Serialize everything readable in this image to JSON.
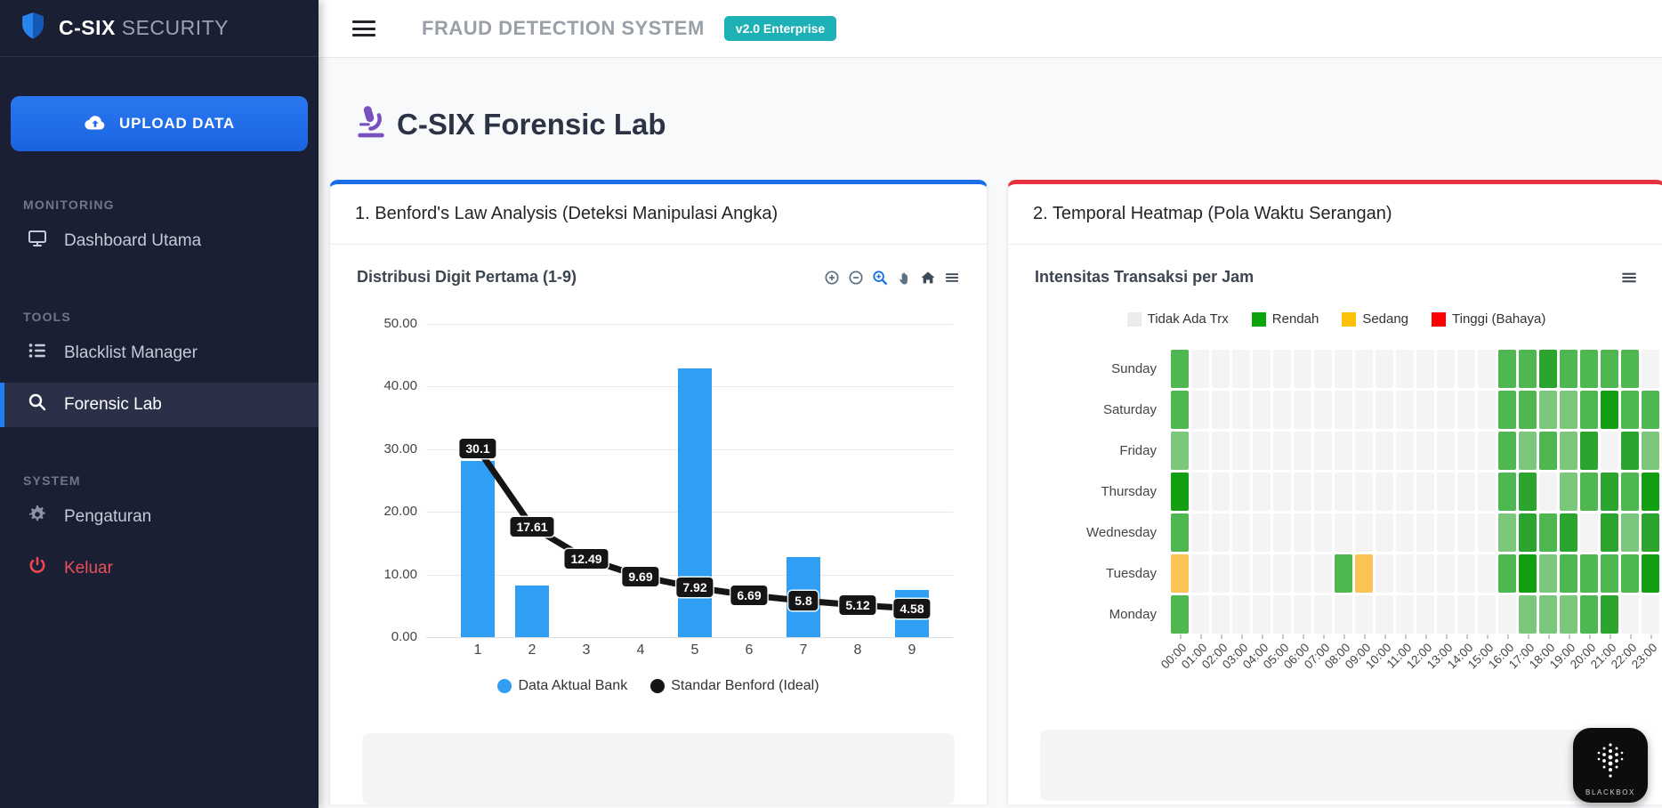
{
  "sidebar": {
    "logo": {
      "brand_bold": "C-SIX",
      "brand_light": "SECURITY"
    },
    "upload_button": "UPLOAD DATA",
    "sections": [
      {
        "label": "MONITORING",
        "items": [
          {
            "label": "Dashboard Utama",
            "icon": "monitor-icon",
            "active": false
          }
        ]
      },
      {
        "label": "TOOLS",
        "items": [
          {
            "label": "Blacklist Manager",
            "icon": "list-icon",
            "active": false
          },
          {
            "label": "Forensic Lab",
            "icon": "search-icon",
            "active": true
          }
        ]
      },
      {
        "label": "SYSTEM",
        "items": [
          {
            "label": "Pengaturan",
            "icon": "gear-icon",
            "active": false
          },
          {
            "label": "Keluar",
            "icon": "power-icon",
            "active": false,
            "danger": true
          }
        ]
      }
    ]
  },
  "header": {
    "title": "FRAUD DETECTION SYSTEM",
    "badge": "v2.0 Enterprise"
  },
  "page": {
    "title": "C-SIX Forensic Lab",
    "title_icon": "microscope-icon"
  },
  "benford_card": {
    "title": "1. Benford's Law Analysis (Deteksi Manipulasi Angka)",
    "accent_color": "#1a6fe8",
    "modebar_icons": [
      "zoom-in-icon",
      "zoom-out-icon",
      "box-zoom-icon",
      "pan-icon",
      "home-icon",
      "menu-icon"
    ]
  },
  "heatmap_card": {
    "title": "2. Temporal Heatmap (Pola Waktu Serangan)",
    "accent_color": "#e5323e",
    "modebar_icons": [
      "menu-icon"
    ]
  },
  "chart_data": [
    {
      "type": "bar",
      "title": "Distribusi Digit Pertama (1-9)",
      "categories": [
        "1",
        "2",
        "3",
        "4",
        "5",
        "6",
        "7",
        "8",
        "9"
      ],
      "series": [
        {
          "name": "Data Aktual Bank",
          "type": "bar",
          "color": "#2f9ef3",
          "values": [
            28.1,
            8.3,
            0,
            0,
            42.9,
            0,
            12.8,
            0,
            7.6
          ]
        },
        {
          "name": "Standar Benford (Ideal)",
          "type": "line",
          "color": "#151515",
          "values": [
            30.1,
            17.61,
            12.49,
            9.69,
            7.92,
            6.69,
            5.8,
            5.12,
            4.58
          ],
          "labels": [
            "30.1",
            "17.61",
            "12.49",
            "9.69",
            "7.92",
            "6.69",
            "5.8",
            "5.12",
            "4.58"
          ]
        }
      ],
      "yticks": [
        "0.00",
        "10.00",
        "20.00",
        "30.00",
        "40.00",
        "50.00"
      ],
      "ylim": [
        0,
        50
      ],
      "grid": true,
      "legend_position": "bottom"
    },
    {
      "type": "heatmap",
      "title": "Intensitas Transaksi per Jam",
      "days": [
        "Sunday",
        "Saturday",
        "Friday",
        "Thursday",
        "Wednesday",
        "Tuesday",
        "Monday"
      ],
      "hours": [
        "00:00",
        "01:00",
        "02:00",
        "03:00",
        "04:00",
        "05:00",
        "06:00",
        "07:00",
        "08:00",
        "09:00",
        "10:00",
        "11:00",
        "12:00",
        "13:00",
        "14:00",
        "15:00",
        "16:00",
        "17:00",
        "18:00",
        "19:00",
        "20:00",
        "21:00",
        "22:00",
        "23:00"
      ],
      "palette": {
        "0": "#f4f4f4",
        "1": "#7bc87d",
        "2": "#4eb751",
        "3": "#2ca52f",
        "4": "#12a012",
        "5": "#fbc353"
      },
      "grid_values": [
        [
          2,
          0,
          0,
          0,
          0,
          0,
          0,
          0,
          0,
          0,
          0,
          0,
          0,
          0,
          0,
          0,
          2,
          2,
          3,
          2,
          2,
          2,
          2,
          0
        ],
        [
          2,
          0,
          0,
          0,
          0,
          0,
          0,
          0,
          0,
          0,
          0,
          0,
          0,
          0,
          0,
          0,
          2,
          2,
          1,
          1,
          2,
          4,
          2,
          2
        ],
        [
          1,
          0,
          0,
          0,
          0,
          0,
          0,
          0,
          0,
          0,
          0,
          0,
          0,
          0,
          0,
          0,
          2,
          1,
          2,
          1,
          3,
          0,
          3,
          1
        ],
        [
          4,
          0,
          0,
          0,
          0,
          0,
          0,
          0,
          0,
          0,
          0,
          0,
          0,
          0,
          0,
          0,
          2,
          3,
          0,
          1,
          2,
          3,
          2,
          4
        ],
        [
          2,
          0,
          0,
          0,
          0,
          0,
          0,
          0,
          0,
          0,
          0,
          0,
          0,
          0,
          0,
          0,
          1,
          3,
          2,
          3,
          0,
          3,
          1,
          3
        ],
        [
          5,
          0,
          0,
          0,
          0,
          0,
          0,
          0,
          2,
          5,
          0,
          0,
          0,
          0,
          0,
          0,
          2,
          4,
          1,
          2,
          2,
          2,
          2,
          4
        ],
        [
          2,
          0,
          0,
          0,
          0,
          0,
          0,
          0,
          0,
          0,
          0,
          0,
          0,
          0,
          0,
          0,
          0,
          1,
          1,
          1,
          2,
          3,
          0,
          0
        ]
      ],
      "legend": [
        {
          "label": "Tidak Ada Trx",
          "color": "#ececec"
        },
        {
          "label": "Rendah",
          "color": "#0ba50b"
        },
        {
          "label": "Sedang",
          "color": "#fdc107"
        },
        {
          "label": "Tinggi (Bahaya)",
          "color": "#fe0000"
        }
      ]
    }
  ],
  "watermark": {
    "label": "BLACKBOX"
  }
}
